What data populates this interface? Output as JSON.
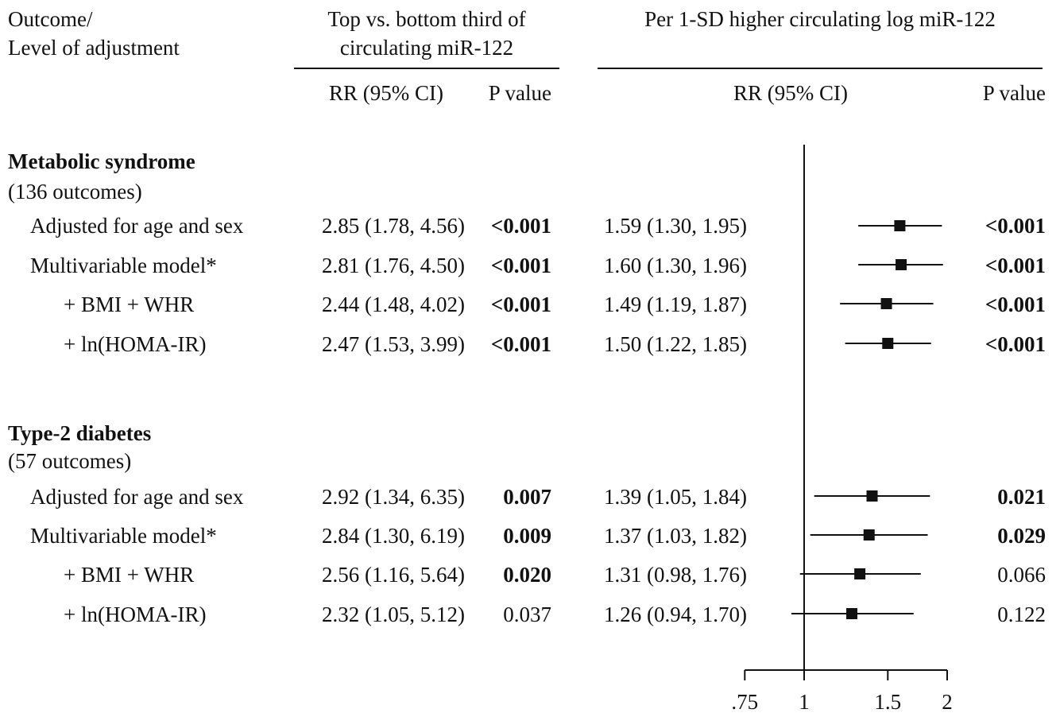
{
  "header": {
    "outcome_line1": "Outcome/",
    "outcome_line2": "Level of adjustment",
    "tertile_line1": "Top vs. bottom third of",
    "tertile_line2": "circulating miR-122",
    "tertile_rr": "RR (95% CI)",
    "tertile_p": "P value",
    "per_sd": "Per 1-SD higher circulating log miR-122",
    "per_sd_rr": "RR (95% CI)",
    "per_sd_p": "P value"
  },
  "groups": [
    {
      "title": "Metabolic syndrome",
      "count": "(136 outcomes)",
      "rows": [
        {
          "label": "Adjusted for age and sex",
          "tertile_ci": "2.85 (1.78, 4.56)",
          "tertile_p": "<0.001",
          "tertile_p_bold": true,
          "sd_ci": "1.59 (1.30, 1.95)",
          "sd_p": "<0.001",
          "sd_p_bold": true
        },
        {
          "label": "Multivariable model*",
          "tertile_ci": "2.81 (1.76, 4.50)",
          "tertile_p": "<0.001",
          "tertile_p_bold": true,
          "sd_ci": "1.60 (1.30, 1.96)",
          "sd_p": "<0.001",
          "sd_p_bold": true
        },
        {
          "label": "+ BMI + WHR",
          "tertile_ci": "2.44 (1.48, 4.02)",
          "tertile_p": "<0.001",
          "tertile_p_bold": true,
          "sd_ci": "1.49 (1.19, 1.87)",
          "sd_p": "<0.001",
          "sd_p_bold": true
        },
        {
          "label": "+ ln(HOMA-IR)",
          "tertile_ci": "2.47 (1.53, 3.99)",
          "tertile_p": "<0.001",
          "tertile_p_bold": true,
          "sd_ci": "1.50 (1.22, 1.85)",
          "sd_p": "<0.001",
          "sd_p_bold": true
        }
      ]
    },
    {
      "title": "Type-2 diabetes",
      "count": "(57 outcomes)",
      "rows": [
        {
          "label": "Adjusted for age and sex",
          "tertile_ci": "2.92 (1.34, 6.35)",
          "tertile_p": "0.007",
          "tertile_p_bold": true,
          "sd_ci": "1.39 (1.05, 1.84)",
          "sd_p": "0.021",
          "sd_p_bold": true
        },
        {
          "label": "Multivariable model*",
          "tertile_ci": "2.84 (1.30, 6.19)",
          "tertile_p": "0.009",
          "tertile_p_bold": true,
          "sd_ci": "1.37 (1.03, 1.82)",
          "sd_p": "0.029",
          "sd_p_bold": true
        },
        {
          "label": "+ BMI + WHR",
          "tertile_ci": "2.56 (1.16, 5.64)",
          "tertile_p": "0.020",
          "tertile_p_bold": true,
          "sd_ci": "1.31 (0.98, 1.76)",
          "sd_p": "0.066",
          "sd_p_bold": false
        },
        {
          "label": "+ ln(HOMA-IR)",
          "tertile_ci": "2.32 (1.05, 5.12)",
          "tertile_p": "0.037",
          "tertile_p_bold": false,
          "sd_ci": "1.26 (0.94, 1.70)",
          "sd_p": "0.122",
          "sd_p_bold": false
        }
      ]
    }
  ],
  "chart_data": {
    "type": "forest",
    "xscale": "log",
    "reference_line": 1,
    "xlim": [
      0.75,
      2
    ],
    "ticks": [
      0.75,
      1,
      1.5,
      2
    ],
    "tick_labels": [
      ".75",
      "1",
      "1.5",
      "2"
    ],
    "series": [
      {
        "group": "Metabolic syndrome",
        "label": "Adjusted for age and sex",
        "rr": 1.59,
        "lower": 1.3,
        "upper": 1.95
      },
      {
        "group": "Metabolic syndrome",
        "label": "Multivariable model*",
        "rr": 1.6,
        "lower": 1.3,
        "upper": 1.96
      },
      {
        "group": "Metabolic syndrome",
        "label": "+ BMI + WHR",
        "rr": 1.49,
        "lower": 1.19,
        "upper": 1.87
      },
      {
        "group": "Metabolic syndrome",
        "label": "+ ln(HOMA-IR)",
        "rr": 1.5,
        "lower": 1.22,
        "upper": 1.85
      },
      {
        "group": "Type-2 diabetes",
        "label": "Adjusted for age and sex",
        "rr": 1.39,
        "lower": 1.05,
        "upper": 1.84
      },
      {
        "group": "Type-2 diabetes",
        "label": "Multivariable model*",
        "rr": 1.37,
        "lower": 1.03,
        "upper": 1.82
      },
      {
        "group": "Type-2 diabetes",
        "label": "+ BMI + WHR",
        "rr": 1.31,
        "lower": 0.98,
        "upper": 1.76
      },
      {
        "group": "Type-2 diabetes",
        "label": "+ ln(HOMA-IR)",
        "rr": 1.26,
        "lower": 0.94,
        "upper": 1.7
      }
    ]
  }
}
